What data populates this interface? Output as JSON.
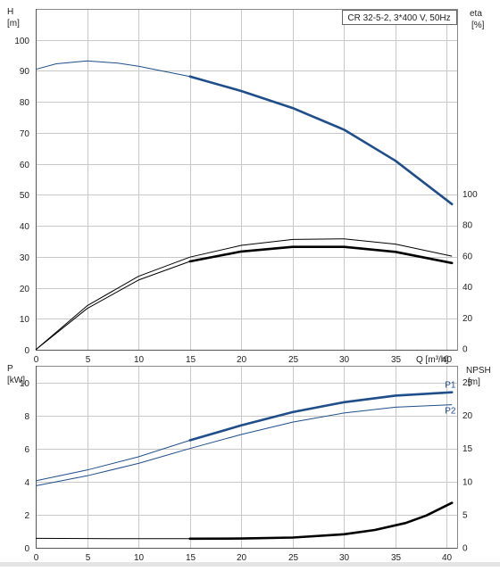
{
  "model_label": "CR 32-5-2, 3*400 V, 50Hz",
  "colors": {
    "blue": "#1f4e8a",
    "black": "#000000",
    "grid": "#c8c8c8"
  },
  "chart_data": [
    {
      "type": "line",
      "panel": "top",
      "title": "CR 32-5-2, 3*400 V, 50Hz",
      "xlabel": "Q [m³/h]",
      "xlim": [
        0,
        41
      ],
      "x_ticks": [
        0,
        5,
        10,
        15,
        20,
        25,
        30,
        35,
        40
      ],
      "left_axis": {
        "label_line1": "H",
        "label_line2": "[m]",
        "ylim": [
          0,
          110
        ],
        "ticks": [
          0,
          10,
          20,
          30,
          40,
          50,
          60,
          70,
          80,
          90,
          100
        ]
      },
      "right_axis": {
        "label_line1": "eta",
        "label_line2": "[%]",
        "ylim": [
          0,
          100
        ],
        "ticks": [
          0,
          20,
          40,
          60,
          80,
          100
        ],
        "offset_in_left_units": 0,
        "scale_in_left_units": 0.5
      },
      "series": [
        {
          "axis": "left",
          "color": "#1f4e8a",
          "x": [
            0,
            2,
            5,
            8,
            10,
            15,
            20,
            25,
            30,
            35,
            40.5
          ],
          "y": [
            90.5,
            92.3,
            93.2,
            92.5,
            91.5,
            88.2,
            83.5,
            78,
            71,
            61,
            47
          ],
          "thick_from_x": 15
        },
        {
          "axis": "left",
          "color": "#000000",
          "x": [
            0,
            5,
            10,
            15,
            20,
            25,
            30,
            35,
            40.5
          ],
          "y": [
            0,
            14.2,
            23.7,
            29.9,
            33.7,
            35.6,
            35.8,
            34.1,
            30.2
          ],
          "thick_from_x": 100
        },
        {
          "axis": "left",
          "color": "#000000",
          "x": [
            0,
            5,
            10,
            15,
            20,
            25,
            30,
            35,
            40.5
          ],
          "y": [
            0,
            13.3,
            22.5,
            28.5,
            31.7,
            33.2,
            33.2,
            31.6,
            28
          ],
          "thick_from_x": 15
        }
      ]
    },
    {
      "type": "line",
      "panel": "bottom",
      "xlim": [
        0,
        41
      ],
      "x_ticks": [
        0,
        5,
        10,
        15,
        20,
        25,
        30,
        35,
        40
      ],
      "left_axis": {
        "label_line1": "P",
        "label_line2": "[kW]",
        "ylim": [
          0,
          11
        ],
        "ticks": [
          0,
          2,
          4,
          6,
          8,
          10
        ]
      },
      "right_axis": {
        "label_line1": "NPSH",
        "label_line2": "[m]",
        "ylim": [
          0,
          27.5
        ],
        "ticks": [
          0,
          5,
          10,
          15,
          20,
          25
        ],
        "offset_in_left_units": 0,
        "scale_in_left_units": 0.4
      },
      "series": [
        {
          "name": "P1",
          "axis": "left",
          "color": "#1f4e8a",
          "x": [
            0,
            5,
            10,
            15,
            20,
            25,
            30,
            35,
            40.5
          ],
          "y": [
            4.05,
            4.7,
            5.5,
            6.5,
            7.4,
            8.2,
            8.8,
            9.2,
            9.4
          ],
          "thick_from_x": 15
        },
        {
          "name": "P2",
          "axis": "left",
          "color": "#1f4e8a",
          "x": [
            0,
            5,
            10,
            15,
            20,
            25,
            30,
            35,
            40.5
          ],
          "y": [
            3.75,
            4.35,
            5.1,
            6.0,
            6.85,
            7.6,
            8.15,
            8.5,
            8.65
          ],
          "thick_from_x": 100
        },
        {
          "axis": "left",
          "color": "#000000",
          "x": [
            0,
            10,
            15,
            20,
            25,
            30,
            33,
            36,
            38,
            40.5
          ],
          "y": [
            0.57,
            0.55,
            0.55,
            0.56,
            0.62,
            0.82,
            1.08,
            1.5,
            1.95,
            2.72
          ],
          "thick_from_x": 15
        }
      ]
    }
  ]
}
